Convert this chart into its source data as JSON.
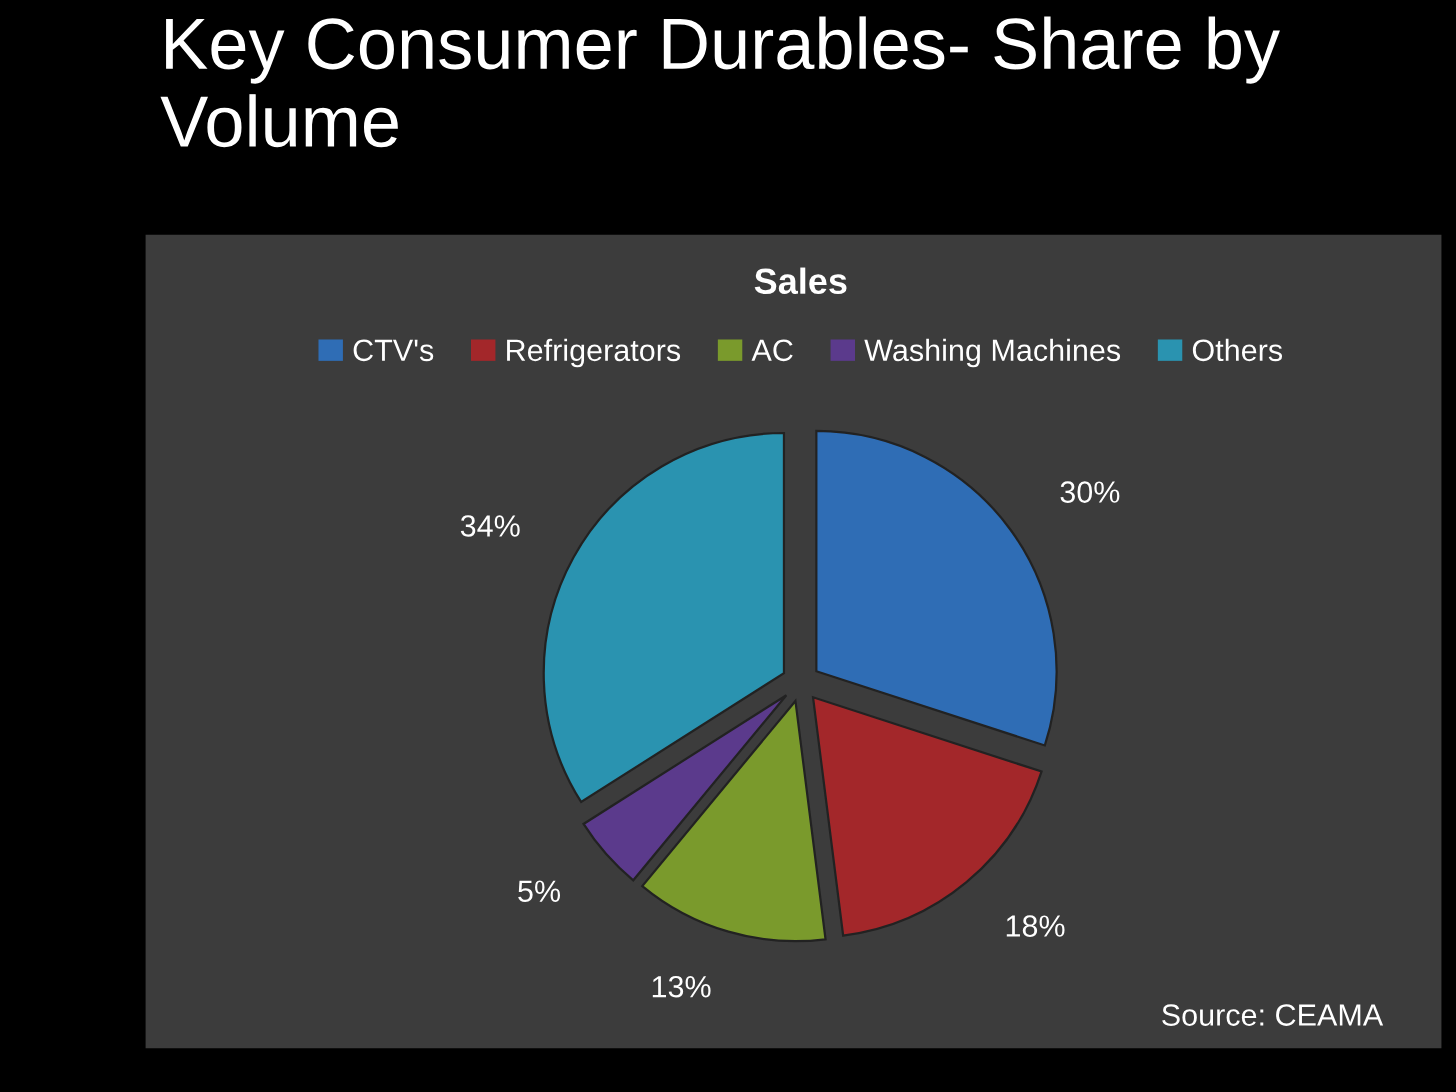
{
  "chart_data": {
    "type": "pie",
    "title": "Key Consumer Durables- Share by Volume",
    "subtitle": "Sales",
    "categories": [
      "CTV's",
      "Refrigerators",
      "AC",
      "Washing Machines",
      "Others"
    ],
    "values": [
      30,
      18,
      13,
      5,
      34
    ],
    "value_labels": [
      "30%",
      "18%",
      "13%",
      "5%",
      "34%"
    ],
    "colors": [
      "#2f6db5",
      "#a3272a",
      "#7a9a2c",
      "#5b3a8c",
      "#2a93b0"
    ],
    "legend": "top",
    "annotations": [
      "Source: CEAMA"
    ]
  }
}
